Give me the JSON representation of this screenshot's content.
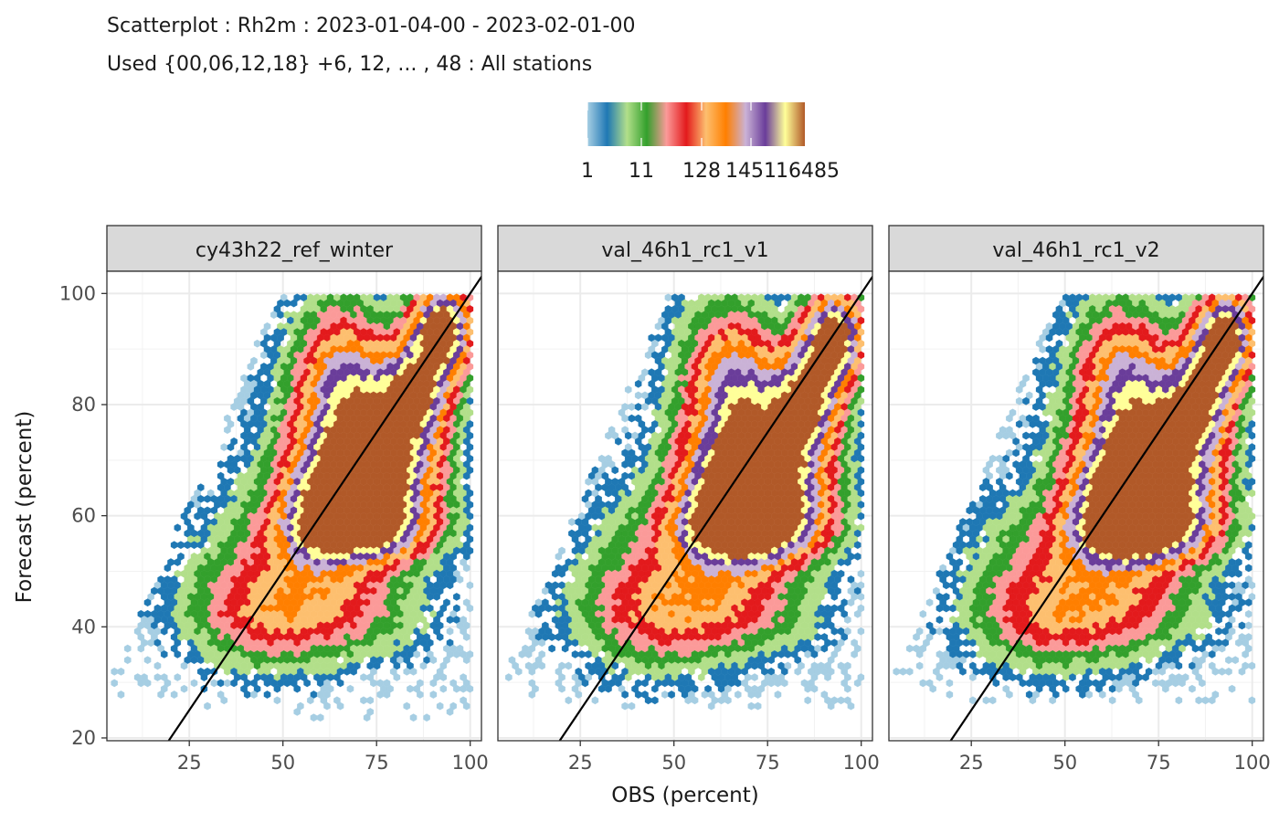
{
  "titles": {
    "line1": "Scatterplot : Rh2m : 2023-01-04-00 - 2023-02-01-00",
    "line2": "Used {00,06,12,18} +6, 12, ... , 48 : All stations"
  },
  "legend": {
    "tick_labels": [
      "1",
      "11",
      "128",
      "1451",
      "16485"
    ],
    "palette": [
      "#A6CEE3",
      "#1F78B4",
      "#B2DF8A",
      "#33A02C",
      "#FB9A99",
      "#E31A1C",
      "#FDBF6F",
      "#FF7F00",
      "#CAB2D6",
      "#6A3D9A",
      "#FFFF99",
      "#B15928"
    ]
  },
  "chart_data": {
    "type": "scatter",
    "subtype": "hexbin density",
    "xlabel": "OBS (percent)",
    "ylabel": "Forecast (percent)",
    "xlim": [
      3,
      103
    ],
    "ylim": [
      19.5,
      104
    ],
    "x_ticks": [
      25,
      50,
      75,
      100
    ],
    "y_ticks": [
      20,
      40,
      60,
      80,
      100
    ],
    "grid": true,
    "reference_line": "y = x",
    "count_scale": "log",
    "panels": [
      {
        "name": "cy43h22_ref_winter",
        "data_extent": {
          "x_min": 5,
          "x_max": 100,
          "y_min": 23,
          "y_max": 100
        },
        "density_features": [
          {
            "x": 92,
            "y": 93,
            "count_level": "max"
          },
          {
            "x": 85,
            "y": 82,
            "count_level": "high"
          },
          {
            "x": 75,
            "y": 65,
            "count_level": "medium"
          },
          {
            "x": 55,
            "y": 60,
            "count_level": "medium-low"
          },
          {
            "x": 60,
            "y": 42,
            "count_level": "low"
          }
        ]
      },
      {
        "name": "val_46h1_rc1_v1",
        "data_extent": {
          "x_min": 5,
          "x_max": 100,
          "y_min": 25,
          "y_max": 100
        },
        "density_features": [
          {
            "x": 92,
            "y": 92,
            "count_level": "max"
          },
          {
            "x": 85,
            "y": 80,
            "count_level": "high"
          },
          {
            "x": 75,
            "y": 62,
            "count_level": "medium"
          },
          {
            "x": 57,
            "y": 60,
            "count_level": "medium-low"
          },
          {
            "x": 62,
            "y": 42,
            "count_level": "low"
          }
        ]
      },
      {
        "name": "val_46h1_rc1_v2",
        "data_extent": {
          "x_min": 5,
          "x_max": 100,
          "y_min": 26,
          "y_max": 100
        },
        "density_features": [
          {
            "x": 92,
            "y": 92,
            "count_level": "max"
          },
          {
            "x": 85,
            "y": 80,
            "count_level": "high"
          },
          {
            "x": 75,
            "y": 62,
            "count_level": "medium"
          },
          {
            "x": 57,
            "y": 60,
            "count_level": "medium-low"
          },
          {
            "x": 62,
            "y": 42,
            "count_level": "low"
          }
        ]
      }
    ]
  }
}
